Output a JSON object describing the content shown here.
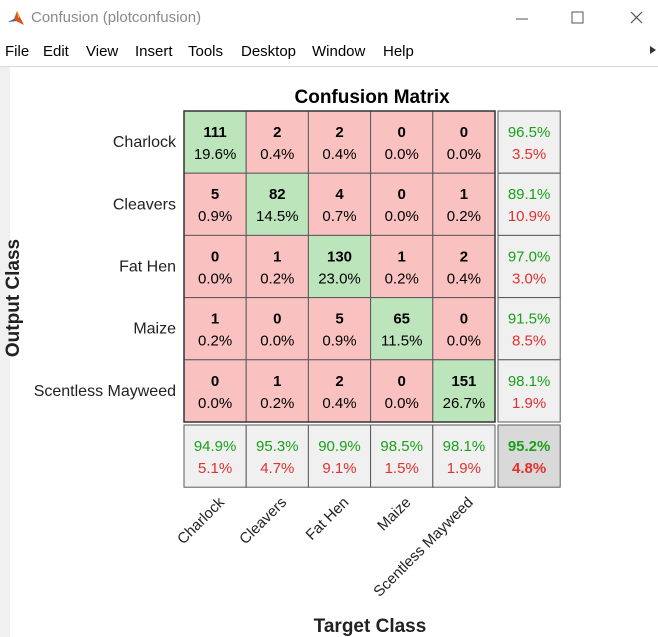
{
  "window": {
    "title": "Confusion (plotconfusion)"
  },
  "menu": {
    "items": [
      "File",
      "Edit",
      "View",
      "Insert",
      "Tools",
      "Desktop",
      "Window",
      "Help"
    ]
  },
  "colors": {
    "correct_cell": "#bce5bc",
    "incorrect_cell": "#f9c2c1",
    "summary_cell": "#f0f0f0",
    "overall_cell": "#d9d9d9",
    "green_text": "#1aa01a",
    "red_text": "#e03030",
    "matlab_icon": "#d9531e"
  },
  "chart_data": {
    "type": "heatmap",
    "title": "Confusion Matrix",
    "xlabel": "Target Class",
    "ylabel": "Output Class",
    "output_classes": [
      "Charlock",
      "Cleavers",
      "Fat Hen",
      "Maize",
      "Scentless Mayweed"
    ],
    "target_classes": [
      "Charlock",
      "Cleavers",
      "Fat Hen",
      "Maize",
      "Scentless Mayweed"
    ],
    "counts": [
      [
        111,
        2,
        2,
        0,
        0
      ],
      [
        5,
        82,
        4,
        0,
        1
      ],
      [
        0,
        1,
        130,
        1,
        2
      ],
      [
        1,
        0,
        5,
        65,
        0
      ],
      [
        0,
        1,
        2,
        0,
        151
      ]
    ],
    "percents": [
      [
        "19.6%",
        "0.4%",
        "0.4%",
        "0.0%",
        "0.0%"
      ],
      [
        "0.9%",
        "14.5%",
        "0.7%",
        "0.0%",
        "0.2%"
      ],
      [
        "0.0%",
        "0.2%",
        "23.0%",
        "0.2%",
        "0.4%"
      ],
      [
        "0.2%",
        "0.0%",
        "0.9%",
        "11.5%",
        "0.0%"
      ],
      [
        "0.0%",
        "0.2%",
        "0.4%",
        "0.0%",
        "26.7%"
      ]
    ],
    "row_summary": [
      {
        "correct": "96.5%",
        "incorrect": "3.5%"
      },
      {
        "correct": "89.1%",
        "incorrect": "10.9%"
      },
      {
        "correct": "97.0%",
        "incorrect": "3.0%"
      },
      {
        "correct": "91.5%",
        "incorrect": "8.5%"
      },
      {
        "correct": "98.1%",
        "incorrect": "1.9%"
      }
    ],
    "column_summary": [
      {
        "correct": "94.9%",
        "incorrect": "5.1%"
      },
      {
        "correct": "95.3%",
        "incorrect": "4.7%"
      },
      {
        "correct": "90.9%",
        "incorrect": "9.1%"
      },
      {
        "correct": "98.5%",
        "incorrect": "1.5%"
      },
      {
        "correct": "98.1%",
        "incorrect": "1.9%"
      }
    ],
    "overall": {
      "correct": "95.2%",
      "incorrect": "4.8%"
    }
  }
}
